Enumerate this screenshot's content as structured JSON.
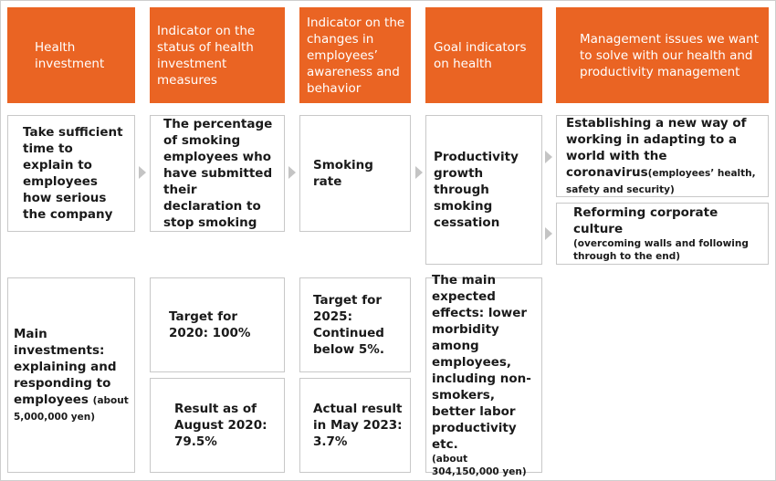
{
  "headers": {
    "col1": "Health investment",
    "col2": "Indicator on the status of health investment measures",
    "col3": "Indicator on the changes in employees’ awareness and behavior",
    "col4": "Goal indicators on health",
    "col5": "Management issues we want to solve with our health and productivity management"
  },
  "row1": {
    "col1": "Take sufficient time to explain to employees how serious the company",
    "col2": "The percentage of smoking employees who have submitted their declaration to stop smoking",
    "col3": "Smoking rate",
    "col4": "Productivity growth through smoking cessation",
    "col5a_main": "Establishing a new way of working in adapting to a world with the coronavirus",
    "col5a_note": "(employees’ health, safety and security)",
    "col5b_main": "Reforming corporate culture",
    "col5b_note": "(overcoming walls and following through to the end)"
  },
  "row2": {
    "col1_main": "Main investments: explaining and responding to employees",
    "col1_note": "(about 5,000,000 yen)",
    "col2_target": "Target for 2020: 100%",
    "col2_result": "Result as of August 2020: 79.5%",
    "col3_target": "Target for 2025: Continued below 5%.",
    "col3_result": "Actual result in May 2023: 3.7%",
    "col4_main": "The main expected effects: lower morbidity among employees, including non-smokers, better labor productivity etc.",
    "col4_note": "(about 304,150,000 yen)"
  },
  "colors": {
    "header_bg": "#ea6423",
    "header_text": "#ffffff",
    "box_border": "#c8c8c8",
    "arrow": "#c4c4c4"
  }
}
